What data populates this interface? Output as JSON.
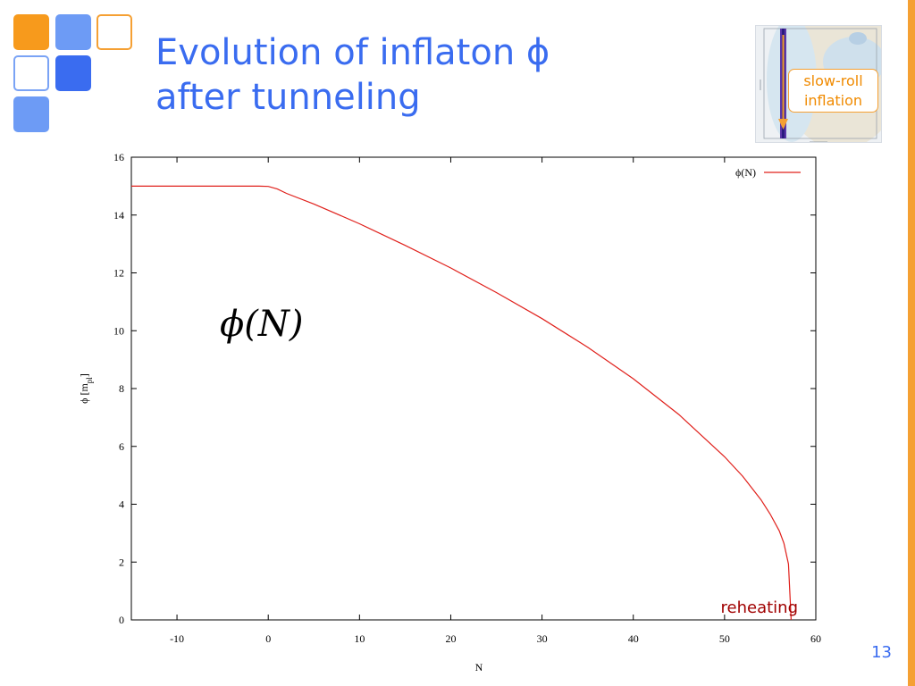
{
  "slide": {
    "title_line1": "Evolution of inflaton ϕ",
    "title_line2": "after tunneling",
    "page_number": "13",
    "colors": {
      "accent_orange": "#f5a033",
      "title_blue": "#3a6cf0",
      "curve_red": "#e0201b",
      "reheating_red": "#a00000"
    }
  },
  "inset": {
    "callout_line1": "slow-roll",
    "callout_line2": "inflation",
    "marker": "orange-down-arrow"
  },
  "chart_data": {
    "type": "line",
    "xlabel": "N",
    "ylabel": "ϕ [m_pl]",
    "xlim": [
      -15,
      60
    ],
    "ylim": [
      0,
      16
    ],
    "xticks": [
      -10,
      0,
      10,
      20,
      30,
      40,
      50,
      60
    ],
    "yticks": [
      0,
      2,
      4,
      6,
      8,
      10,
      12,
      14,
      16
    ],
    "grid": false,
    "legend_position": "top-right",
    "series": [
      {
        "name": "ϕ(N)",
        "color": "#e0201b",
        "x": [
          -15,
          -10,
          -5,
          -1,
          0,
          1,
          2,
          5,
          10,
          15,
          20,
          25,
          30,
          35,
          40,
          45,
          50,
          52,
          54,
          55,
          56,
          56.5,
          57,
          57.3
        ],
        "y": [
          15,
          15,
          15,
          15,
          14.99,
          14.9,
          14.75,
          14.38,
          13.7,
          12.95,
          12.17,
          11.32,
          10.42,
          9.43,
          8.34,
          7.1,
          5.64,
          4.96,
          4.15,
          3.66,
          3.08,
          2.65,
          1.93,
          0
        ]
      }
    ],
    "annotations": [
      "ϕ(N)",
      "reheating"
    ]
  }
}
